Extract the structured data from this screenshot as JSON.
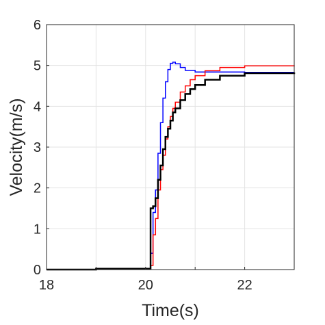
{
  "chart_data": {
    "type": "line",
    "title": "",
    "xlabel": "Time(s)",
    "ylabel": "Velocity(m/s)",
    "xlim": [
      18,
      23
    ],
    "ylim": [
      0,
      6
    ],
    "x_ticks": [
      18,
      20,
      22
    ],
    "y_ticks": [
      0,
      1,
      2,
      3,
      4,
      5,
      6
    ],
    "grid": true,
    "legend": "none",
    "step": true,
    "series": [
      {
        "color": "#0000ff",
        "points": [
          [
            18,
            0
          ],
          [
            19,
            0.02
          ],
          [
            20.05,
            0.02
          ],
          [
            20.1,
            0.4
          ],
          [
            20.15,
            1.4
          ],
          [
            20.2,
            1.95
          ],
          [
            20.25,
            2.85
          ],
          [
            20.3,
            3.6
          ],
          [
            20.35,
            4.2
          ],
          [
            20.4,
            4.6
          ],
          [
            20.45,
            4.9
          ],
          [
            20.5,
            5.05
          ],
          [
            20.55,
            5.08
          ],
          [
            20.6,
            5.04
          ],
          [
            20.7,
            4.95
          ],
          [
            20.8,
            4.88
          ],
          [
            21.0,
            4.84
          ],
          [
            22.0,
            4.83
          ],
          [
            23,
            4.83
          ]
        ]
      },
      {
        "color": "#ff0000",
        "points": [
          [
            18,
            0
          ],
          [
            19,
            0.02
          ],
          [
            20.05,
            0.02
          ],
          [
            20.1,
            0.1
          ],
          [
            20.15,
            0.85
          ],
          [
            20.2,
            1.25
          ],
          [
            20.25,
            1.95
          ],
          [
            20.3,
            2.45
          ],
          [
            20.35,
            2.8
          ],
          [
            20.4,
            3.2
          ],
          [
            20.45,
            3.5
          ],
          [
            20.5,
            3.75
          ],
          [
            20.55,
            3.95
          ],
          [
            20.6,
            4.1
          ],
          [
            20.7,
            4.35
          ],
          [
            20.8,
            4.5
          ],
          [
            20.9,
            4.65
          ],
          [
            21.0,
            4.75
          ],
          [
            21.2,
            4.87
          ],
          [
            21.5,
            4.95
          ],
          [
            22.0,
            4.99
          ],
          [
            23,
            5.0
          ]
        ]
      },
      {
        "color": "#000000",
        "points": [
          [
            18,
            0
          ],
          [
            19,
            0.02
          ],
          [
            20.05,
            0.02
          ],
          [
            20.1,
            1.5
          ],
          [
            20.15,
            1.55
          ],
          [
            20.2,
            1.75
          ],
          [
            20.25,
            2.2
          ],
          [
            20.3,
            2.55
          ],
          [
            20.35,
            2.95
          ],
          [
            20.4,
            3.25
          ],
          [
            20.45,
            3.45
          ],
          [
            20.5,
            3.65
          ],
          [
            20.55,
            3.85
          ],
          [
            20.6,
            3.95
          ],
          [
            20.7,
            4.15
          ],
          [
            20.8,
            4.3
          ],
          [
            20.9,
            4.42
          ],
          [
            21.0,
            4.52
          ],
          [
            21.2,
            4.65
          ],
          [
            21.5,
            4.75
          ],
          [
            22.0,
            4.81
          ],
          [
            23,
            4.83
          ]
        ]
      }
    ]
  }
}
